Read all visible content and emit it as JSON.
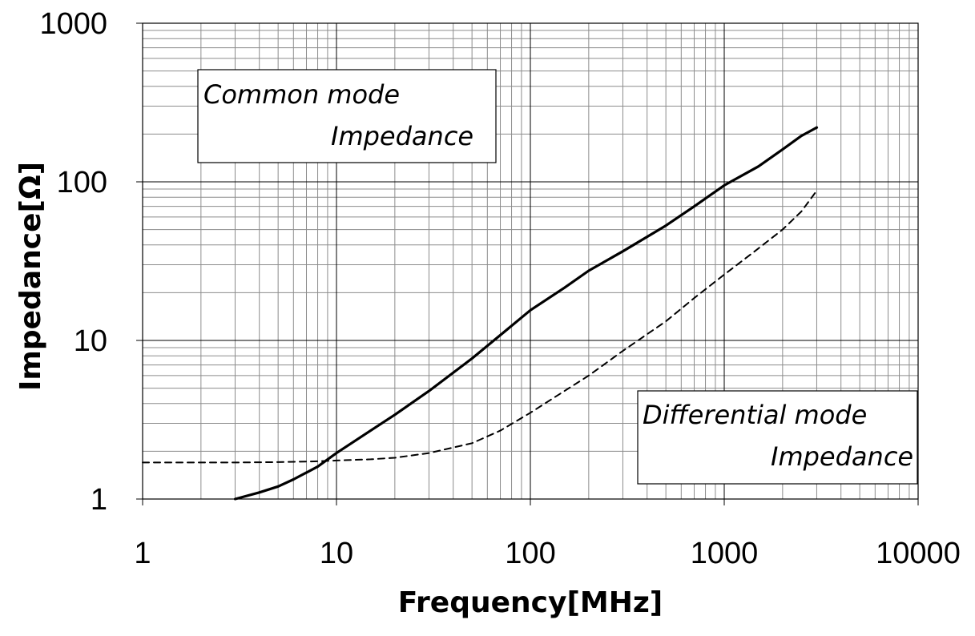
{
  "chart_data": {
    "type": "line",
    "xscale": "log",
    "yscale": "log",
    "xlabel": "Frequency[MHz]",
    "ylabel": "Impedance[Ω]",
    "xlim": [
      1,
      10000
    ],
    "ylim": [
      1,
      1000
    ],
    "x_tick_labels": [
      "1",
      "10",
      "100",
      "1000",
      "10000"
    ],
    "y_tick_labels": [
      "1",
      "10",
      "100",
      "1000"
    ],
    "grid": true,
    "series": [
      {
        "name": "Common mode Impedance",
        "style": "solid",
        "color": "#000000",
        "x": [
          3,
          4,
          5,
          6,
          8,
          10,
          15,
          20,
          30,
          50,
          70,
          100,
          150,
          200,
          300,
          500,
          700,
          1000,
          1500,
          2000,
          2500,
          3000
        ],
        "y": [
          1.0,
          1.1,
          1.2,
          1.33,
          1.6,
          1.95,
          2.7,
          3.4,
          4.8,
          7.7,
          10.8,
          15.5,
          21.5,
          27.5,
          36.5,
          53,
          70,
          95,
          125,
          160,
          195,
          220
        ]
      },
      {
        "name": "Differential mode Impedance",
        "style": "dashed",
        "color": "#000000",
        "x": [
          1,
          2,
          3,
          5,
          8,
          10,
          15,
          20,
          30,
          50,
          70,
          100,
          150,
          200,
          300,
          500,
          700,
          1000,
          1500,
          2000,
          2500,
          3000
        ],
        "y": [
          1.7,
          1.7,
          1.7,
          1.71,
          1.73,
          1.75,
          1.78,
          1.82,
          1.95,
          2.25,
          2.7,
          3.5,
          4.8,
          6.0,
          8.6,
          13.2,
          18.5,
          26,
          38,
          50,
          65,
          88
        ]
      }
    ],
    "annotations": [
      {
        "name": "common",
        "line1": "Common mode",
        "line2": "Impedance"
      },
      {
        "name": "differential",
        "line1": "Differential mode",
        "line2": "Impedance"
      }
    ]
  }
}
